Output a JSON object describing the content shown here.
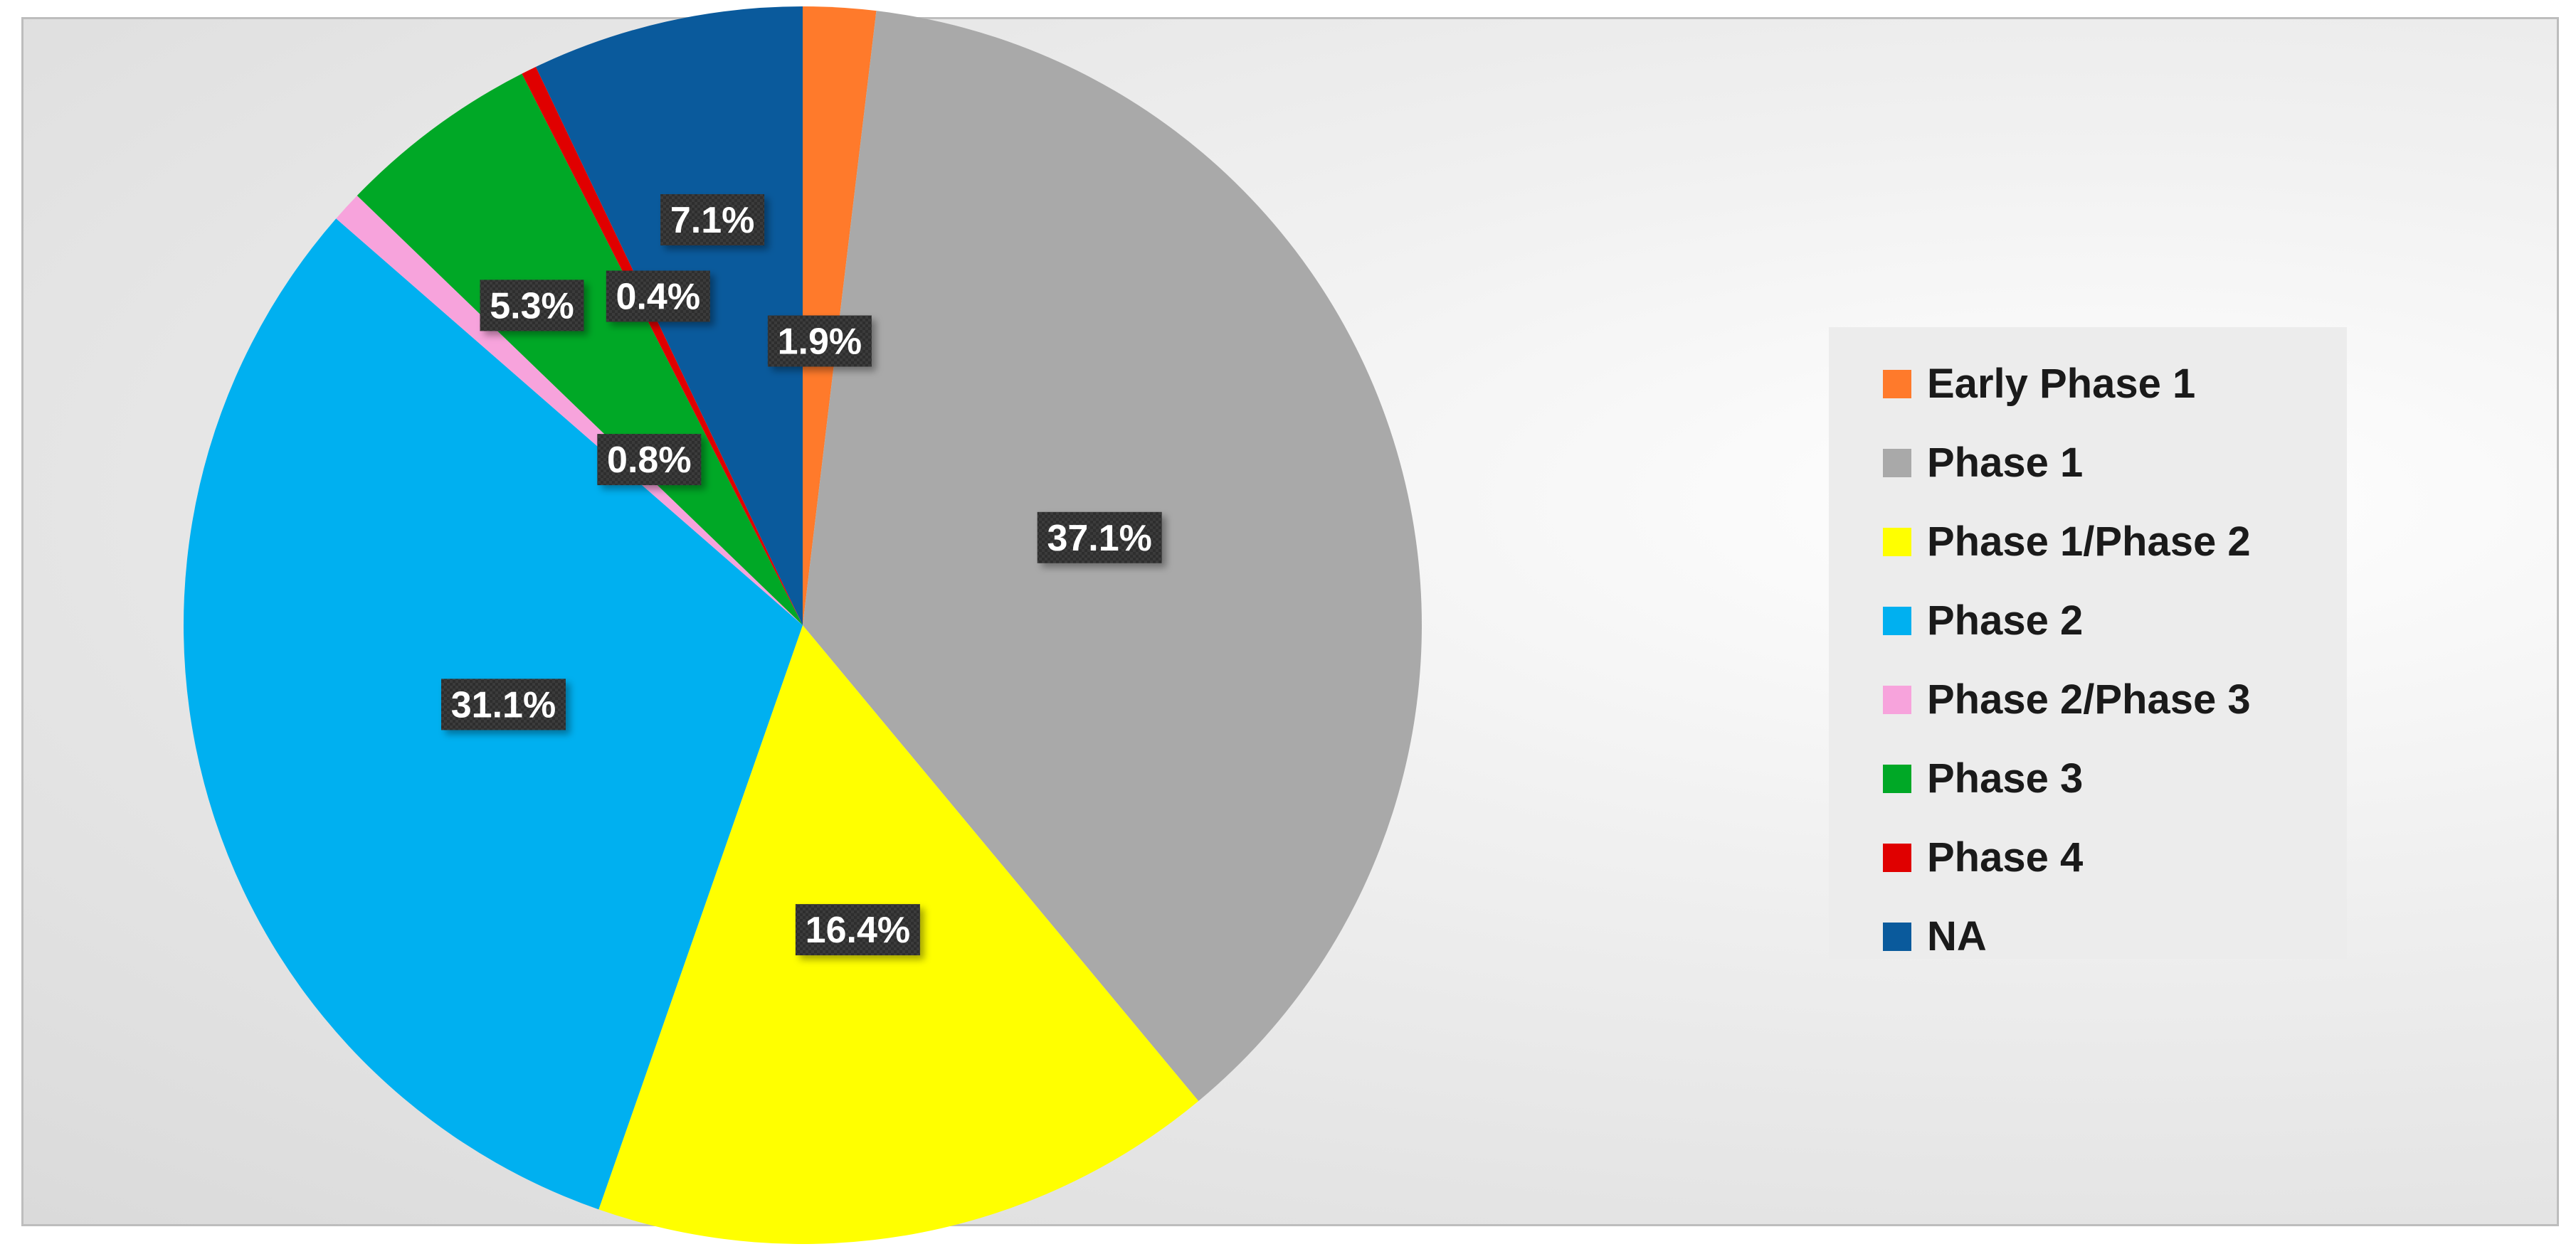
{
  "chart_data": {
    "type": "pie",
    "categories": [
      "Early Phase 1",
      "Phase 1",
      "Phase 1/Phase 2",
      "Phase 2",
      "Phase 2/Phase 3",
      "Phase 3",
      "Phase 4",
      "NA"
    ],
    "values": [
      1.9,
      37.1,
      16.4,
      31.1,
      0.8,
      5.3,
      0.4,
      7.1
    ],
    "data_labels": [
      "1.9%",
      "37.1%",
      "16.4%",
      "31.1%",
      "0.8%",
      "5.3%",
      "0.4%",
      "7.1%"
    ],
    "colors": [
      "#FF7A2B",
      "#A9A9A9",
      "#FFFF00",
      "#00B0F0",
      "#F7A3DC",
      "#00A826",
      "#E00000",
      "#0A5A9C"
    ],
    "start_angle_deg": 0,
    "direction": "clockwise",
    "legend_position": "right",
    "title": ""
  },
  "legend": {
    "items": [
      {
        "label": "Early Phase 1",
        "color": "#FF7A2B"
      },
      {
        "label": "Phase 1",
        "color": "#A9A9A9"
      },
      {
        "label": "Phase 1/Phase 2",
        "color": "#FFFF00"
      },
      {
        "label": "Phase 2",
        "color": "#00B0F0"
      },
      {
        "label": "Phase 2/Phase 3",
        "color": "#F7A3DC"
      },
      {
        "label": "Phase 3",
        "color": "#00A826"
      },
      {
        "label": "Phase 4",
        "color": "#E00000"
      },
      {
        "label": "NA",
        "color": "#0A5A9C"
      }
    ]
  }
}
